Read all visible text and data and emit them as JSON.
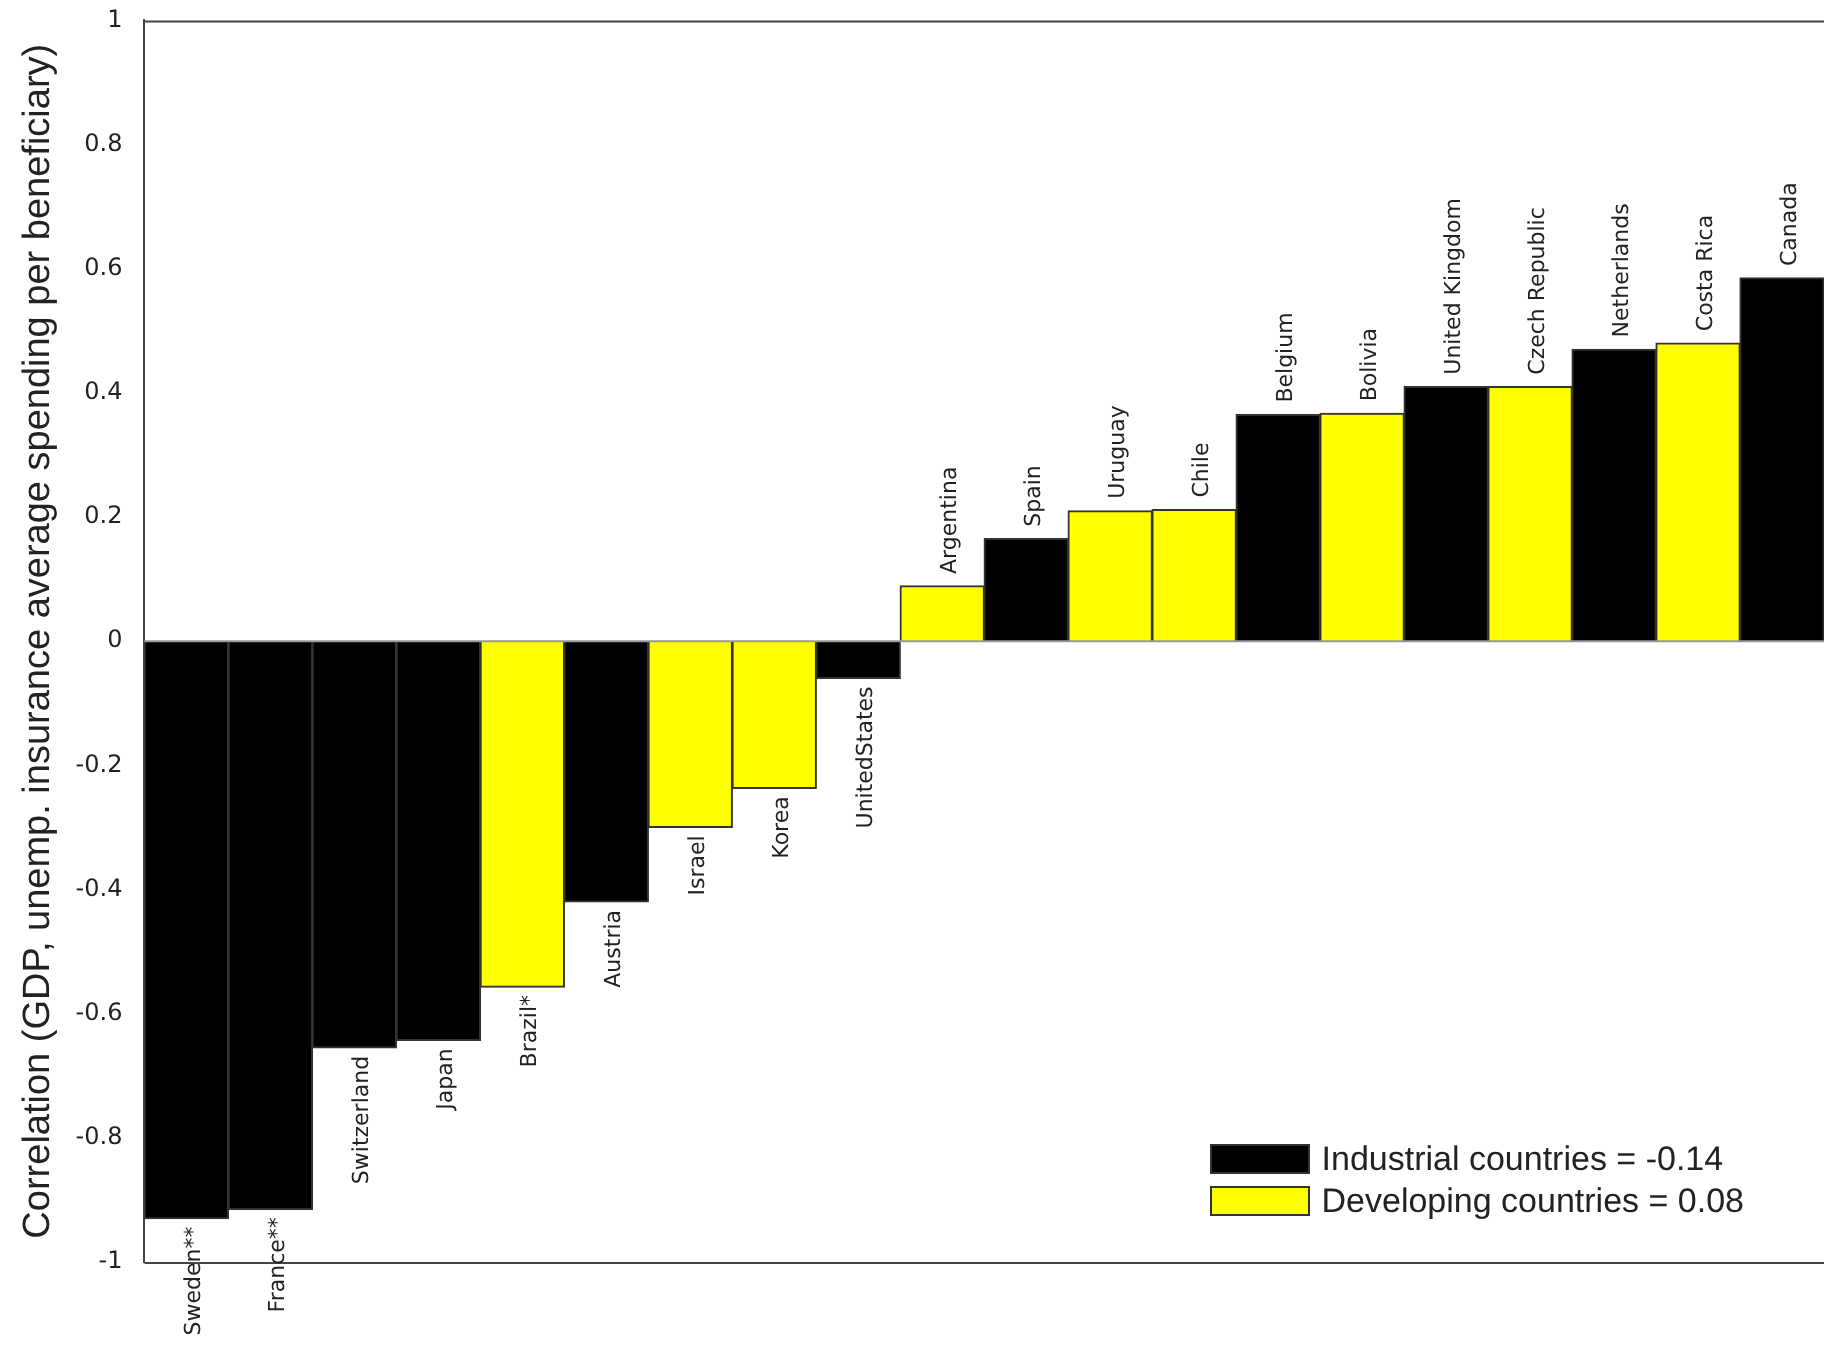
{
  "chart_data": {
    "type": "bar",
    "ylabel": "Correlation (GDP, unemp. insurance average spending per beneficiary)",
    "categories": [
      "Sweden**",
      "France**",
      "Switzerland",
      "Japan",
      "Brazil*",
      "Austria",
      "Israel",
      "Korea",
      "UnitedStates",
      "Argentina",
      "Spain",
      "Uruguay",
      "Chile",
      "Belgium",
      "Bolivia",
      "United Kingdom",
      "Czech Republic",
      "Netherlands",
      "Costa Rica",
      "Canada"
    ],
    "series": [
      {
        "name": "Industrial countries = -0.14",
        "color": "#000000",
        "values": [
          -0.93,
          -0.915,
          -0.655,
          -0.643,
          null,
          -0.42,
          null,
          null,
          -0.06,
          null,
          0.165,
          null,
          null,
          0.365,
          null,
          0.41,
          null,
          0.47,
          null,
          0.585
        ]
      },
      {
        "name": "Developing countries = 0.08",
        "color": "#ffff00",
        "values": [
          null,
          null,
          null,
          null,
          -0.557,
          null,
          -0.3,
          -0.237,
          null,
          0.089,
          null,
          0.21,
          0.212,
          null,
          0.367,
          null,
          0.41,
          null,
          0.48,
          null
        ]
      }
    ],
    "ylim": [
      -1,
      1
    ],
    "yticks": [
      -1,
      -0.8,
      -0.6,
      -0.4,
      -0.2,
      0,
      0.2,
      0.4,
      0.6,
      0.8,
      1
    ],
    "legend": "bottom right"
  }
}
